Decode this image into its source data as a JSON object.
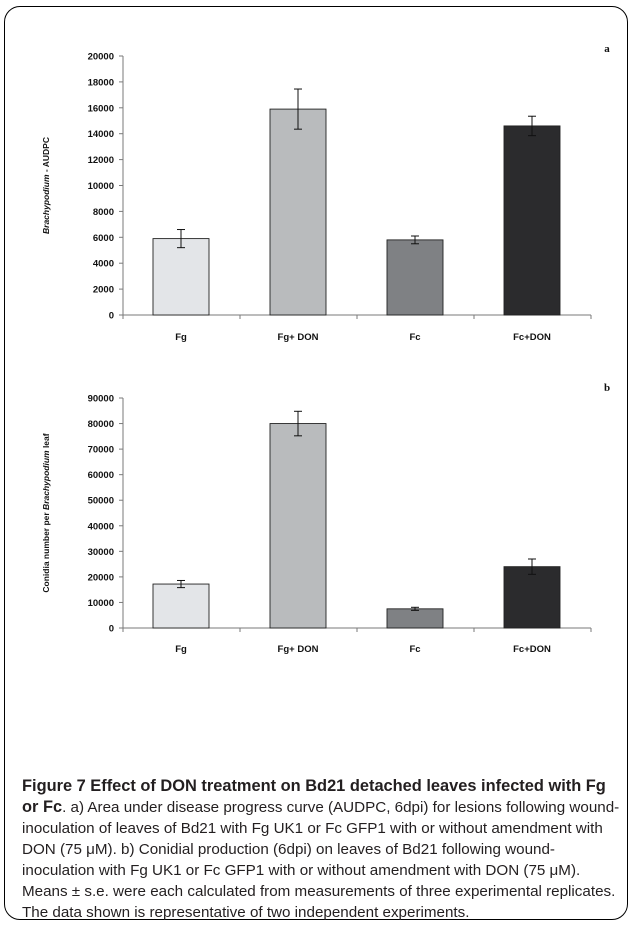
{
  "chart_data": [
    {
      "type": "bar",
      "panel_label": "a",
      "ylabel_italic": "Brachypodium",
      "ylabel_rest": " - AUDPC",
      "categories": [
        "Fg",
        "Fg+ DON",
        "Fc",
        "Fc+DON"
      ],
      "values": [
        5900,
        15900,
        5800,
        14600
      ],
      "errors": [
        700,
        1550,
        300,
        750
      ],
      "colors": [
        "#e3e5e8",
        "#b9bbbd",
        "#7f8184",
        "#2b2b2d"
      ],
      "ylim": [
        0,
        20000
      ],
      "yticks": [
        0,
        2000,
        4000,
        6000,
        8000,
        10000,
        12000,
        14000,
        16000,
        18000,
        20000
      ],
      "grid": false,
      "legend": "none"
    },
    {
      "type": "bar",
      "panel_label": "b",
      "ylabel_pre": "Conidia number per ",
      "ylabel_italic": "Brachypodium",
      "ylabel_rest": " leaf",
      "categories": [
        "Fg",
        "Fg+ DON",
        "Fc",
        "Fc+DON"
      ],
      "values": [
        17200,
        80000,
        7500,
        24000
      ],
      "errors": [
        1400,
        4800,
        600,
        3000
      ],
      "colors": [
        "#e3e5e8",
        "#b9bbbd",
        "#7f8184",
        "#2b2b2d"
      ],
      "ylim": [
        0,
        90000
      ],
      "yticks": [
        0,
        10000,
        20000,
        30000,
        40000,
        50000,
        60000,
        70000,
        80000,
        90000
      ],
      "grid": false,
      "legend": "none"
    }
  ],
  "caption": {
    "title": "Figure 7 Effect of DON treatment on Bd21 detached leaves infected with Fg or Fc",
    "body": ". a) Area under disease progress curve (AUDPC, 6dpi) for lesions following wound-inoculation of leaves of Bd21 with Fg UK1 or Fc GFP1 with or without amendment with DON (75 μM). b) Conidial production (6dpi) on leaves of Bd21 following wound-inoculation with Fg UK1 or Fc GFP1 with or without amendment with DON (75 μM). Means ± s.e. were each calculated from measurements of three experimental replicates. The data shown is representative of two independent experiments."
  }
}
